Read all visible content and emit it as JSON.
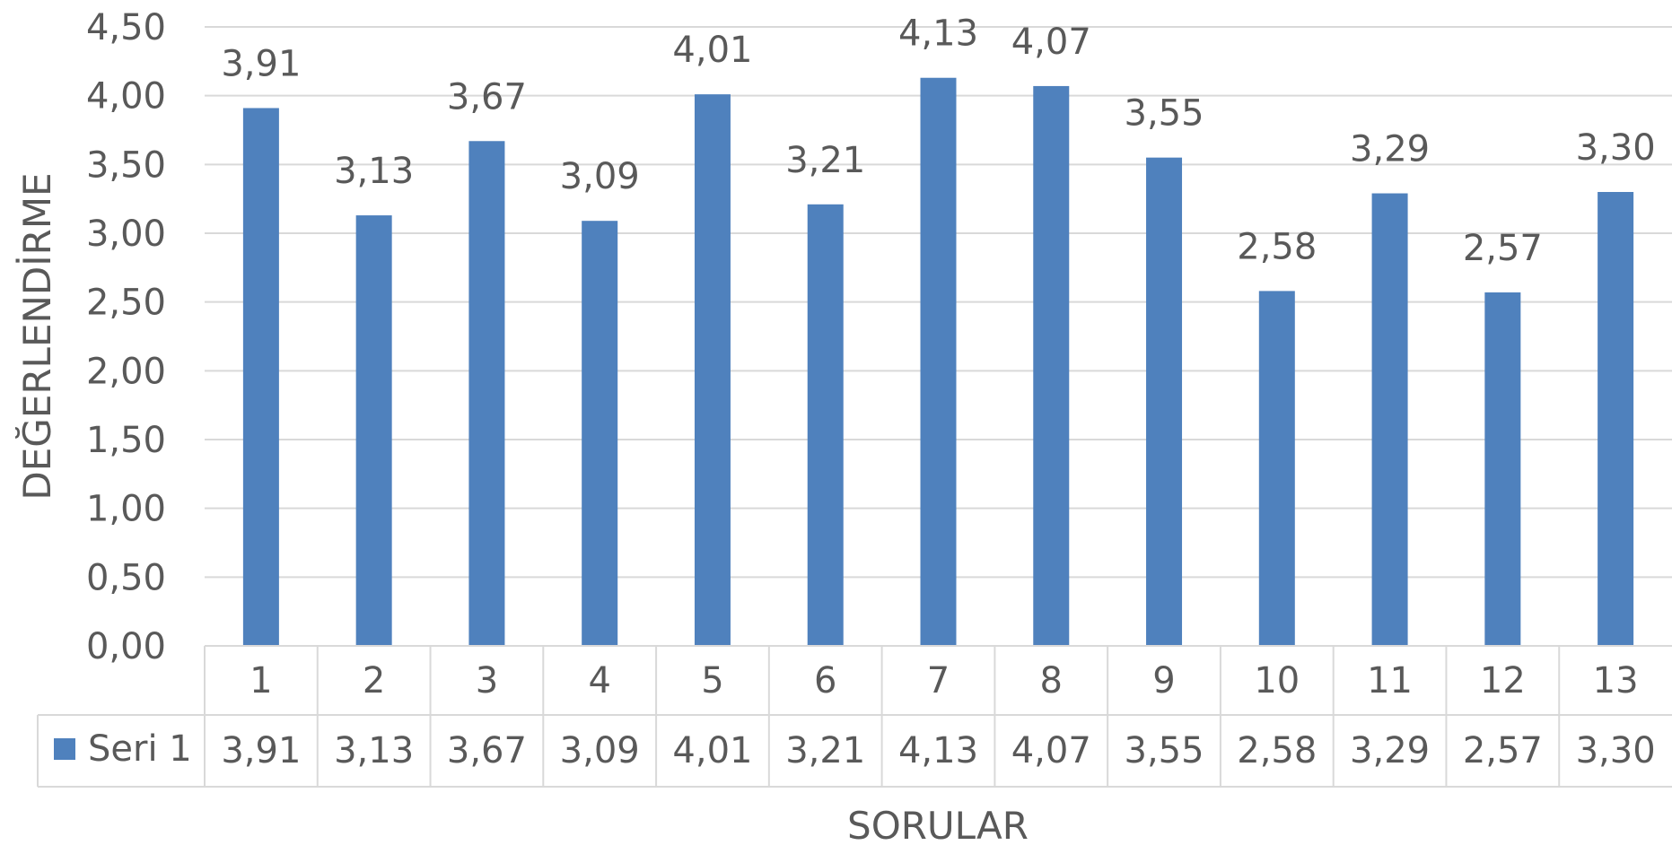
{
  "chart_data": {
    "type": "bar",
    "categories": [
      "1",
      "2",
      "3",
      "4",
      "5",
      "6",
      "7",
      "8",
      "9",
      "10",
      "11",
      "12",
      "13"
    ],
    "series": [
      {
        "name": "Seri 1",
        "color": "#4f81bd",
        "values": [
          3.91,
          3.13,
          3.67,
          3.09,
          4.01,
          3.21,
          4.13,
          4.07,
          3.55,
          2.58,
          3.29,
          2.57,
          3.3
        ],
        "value_labels": [
          "3,91",
          "3,13",
          "3,67",
          "3,09",
          "4,01",
          "3,21",
          "4,13",
          "4,07",
          "3,55",
          "2,58",
          "3,29",
          "2,57",
          "3,30"
        ]
      }
    ],
    "xlabel": "SORULAR",
    "ylabel": "DEĞERLENDİRME",
    "ylim": [
      0,
      4.5
    ],
    "yticks": [
      0,
      0.5,
      1.0,
      1.5,
      2.0,
      2.5,
      3.0,
      3.5,
      4.0,
      4.5
    ],
    "ytick_labels": [
      "0,00",
      "0,50",
      "1,00",
      "1,50",
      "2,00",
      "2,50",
      "3,00",
      "3,50",
      "4,00",
      "4,50"
    ],
    "grid": true,
    "data_table": true,
    "data_labels": true
  }
}
